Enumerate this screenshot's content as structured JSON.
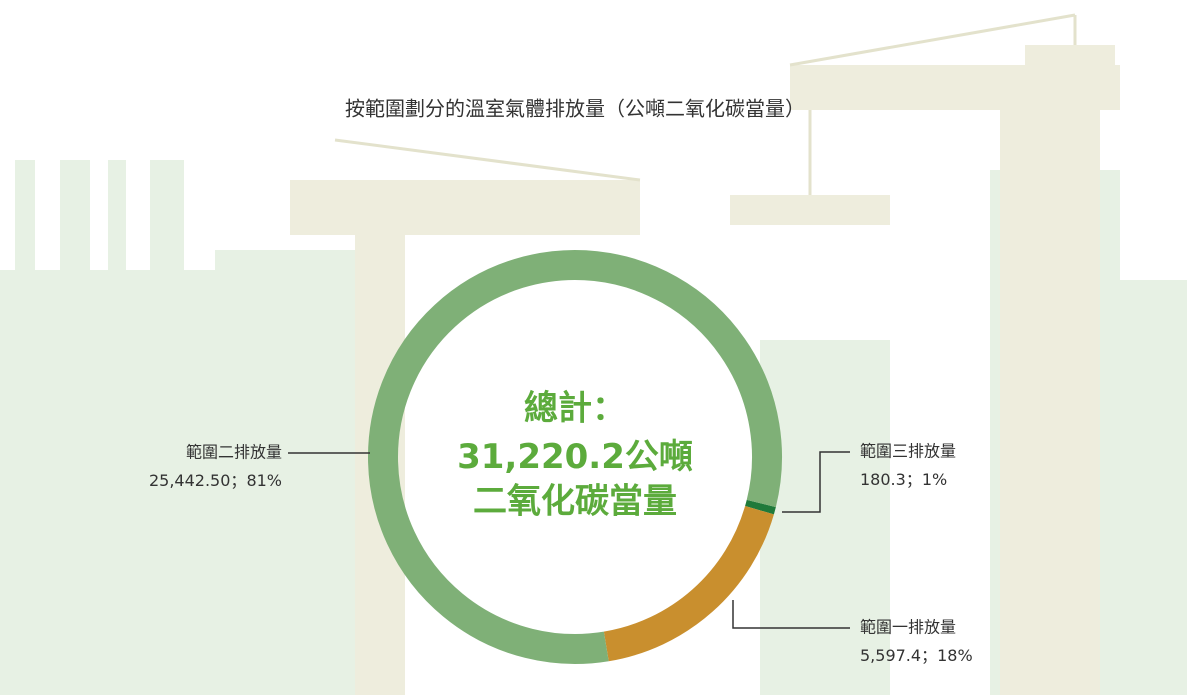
{
  "chart_data": {
    "type": "donut",
    "title": "按範圍劃分的溫室氣體排放量（公噸二氧化碳當量）",
    "categories": [
      "範圍二排放量",
      "範圍一排放量",
      "範圍三排放量"
    ],
    "values": [
      25442.5,
      5597.4,
      180.3
    ],
    "value_labels": [
      "25,442.50",
      "5,597.4",
      "180.3"
    ],
    "percent_labels": [
      "81%",
      "18%",
      "1%"
    ],
    "separator": "；",
    "colors": [
      "#7fb077",
      "#c98f2e",
      "#1f7a3a"
    ],
    "center": {
      "heading": "總計：",
      "total": 31220.2,
      "total_label": "31,220.2",
      "unit": "公噸",
      "line3": "二氧化碳當量"
    }
  }
}
